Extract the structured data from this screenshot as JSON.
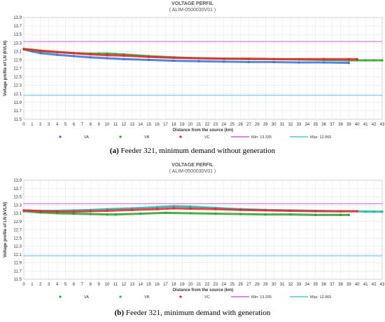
{
  "chart_data": [
    {
      "type": "scatter",
      "title": "VOLTAGE PERFIL",
      "subtitle": "( ALIM-0500030V01 )",
      "xlabel": "Distance from the source (km)",
      "ylabel": "Voltage profile of LN (kVLN)",
      "xlim": [
        0,
        43
      ],
      "ylim": [
        11.5,
        13.9
      ],
      "yticks": [
        "11.5",
        "11.7",
        "11.9",
        "12.1",
        "12.3",
        "12.5",
        "12.7",
        "12.9",
        "13.1",
        "13.3",
        "13.5",
        "13.7",
        "13.9"
      ],
      "xticks": [
        "0",
        "1",
        "2",
        "3",
        "4",
        "5",
        "6",
        "7",
        "8",
        "9",
        "10",
        "11",
        "12",
        "13",
        "14",
        "15",
        "16",
        "17",
        "18",
        "19",
        "20",
        "21",
        "22",
        "23",
        "24",
        "25",
        "26",
        "27",
        "28",
        "29",
        "30",
        "31",
        "32",
        "33",
        "34",
        "35",
        "36",
        "37",
        "38",
        "39",
        "40",
        "41",
        "42",
        "43"
      ],
      "grid": true,
      "legend_position": "bottom",
      "series": [
        {
          "name": "VA",
          "color": "#3a6fd8",
          "x": [
            0,
            1,
            2,
            4,
            6,
            8,
            10,
            12,
            15,
            18,
            21,
            24,
            27,
            30,
            33,
            36,
            39
          ],
          "y": [
            13.15,
            13.1,
            13.06,
            13.02,
            12.99,
            12.96,
            12.94,
            12.92,
            12.9,
            12.88,
            12.87,
            12.86,
            12.85,
            12.85,
            12.84,
            12.84,
            12.83
          ]
        },
        {
          "name": "VB",
          "color": "#2ca02c",
          "x": [
            0,
            1,
            2,
            4,
            6,
            8,
            9,
            10,
            11,
            12,
            15,
            18,
            21,
            24,
            27,
            30,
            33,
            36,
            39,
            40,
            41,
            42,
            43
          ],
          "y": [
            13.15,
            13.13,
            13.11,
            13.08,
            13.06,
            13.05,
            13.05,
            13.05,
            13.04,
            13.03,
            12.99,
            12.96,
            12.94,
            12.93,
            12.92,
            12.92,
            12.91,
            12.9,
            12.89,
            12.89,
            12.89,
            12.89,
            12.89
          ]
        },
        {
          "name": "VC",
          "color": "#e8262c",
          "x": [
            0,
            1,
            2,
            4,
            6,
            8,
            10,
            12,
            15,
            18,
            21,
            24,
            27,
            30,
            33,
            36,
            39,
            40
          ],
          "y": [
            13.16,
            13.14,
            13.12,
            13.09,
            13.06,
            13.03,
            13.01,
            13.0,
            12.97,
            12.95,
            12.94,
            12.93,
            12.93,
            12.92,
            12.92,
            12.92,
            12.92,
            12.92
          ]
        }
      ],
      "hlines": [
        {
          "name": "Mín: 13.335",
          "value": 13.335,
          "color": "#cc66cc"
        },
        {
          "name": "Máx: 12.065",
          "value": 12.065,
          "color": "#5bc0de"
        }
      ],
      "caption_label": "(a)",
      "caption_text": " Feeder 321, minimum demand without generation"
    },
    {
      "type": "scatter",
      "title": "VOLTAGE PERFIL",
      "subtitle": "( ALIM-0500030V01 )",
      "xlabel": "Distance from the source (km)",
      "ylabel": "Voltage profile of LN (kVLN)",
      "xlim": [
        0,
        43
      ],
      "ylim": [
        11.5,
        13.9
      ],
      "yticks": [
        "11.5",
        "11.7",
        "11.9",
        "12.1",
        "12.3",
        "12.5",
        "12.7",
        "12.9",
        "13.1",
        "13.3",
        "13.5",
        "13.7",
        "13.9"
      ],
      "xticks": [
        "0",
        "1",
        "2",
        "3",
        "4",
        "5",
        "6",
        "7",
        "8",
        "9",
        "10",
        "11",
        "12",
        "13",
        "14",
        "15",
        "16",
        "17",
        "18",
        "19",
        "20",
        "21",
        "22",
        "23",
        "24",
        "25",
        "26",
        "27",
        "28",
        "29",
        "30",
        "31",
        "32",
        "33",
        "34",
        "35",
        "36",
        "37",
        "38",
        "39",
        "40",
        "41",
        "42",
        "43"
      ],
      "grid": true,
      "legend_position": "bottom",
      "series": [
        {
          "name": "VA",
          "color": "#2ca02c",
          "x": [
            0,
            2,
            4,
            6,
            8,
            10,
            11,
            14,
            17,
            20,
            23,
            26,
            29,
            32,
            35,
            38,
            39
          ],
          "y": [
            13.15,
            13.12,
            13.1,
            13.09,
            13.08,
            13.07,
            13.07,
            13.09,
            13.11,
            13.1,
            13.09,
            13.08,
            13.07,
            13.07,
            13.06,
            13.06,
            13.06
          ]
        },
        {
          "name": "VB",
          "color": "#20b2aa",
          "x": [
            0,
            2,
            4,
            6,
            8,
            10,
            13,
            16,
            18,
            20,
            23,
            26,
            29,
            32,
            35,
            38,
            40,
            41,
            42,
            43
          ],
          "y": [
            13.17,
            13.16,
            13.16,
            13.17,
            13.18,
            13.2,
            13.22,
            13.25,
            13.27,
            13.26,
            13.23,
            13.2,
            13.18,
            13.17,
            13.16,
            13.15,
            13.15,
            13.14,
            13.14,
            13.14
          ]
        },
        {
          "name": "VC",
          "color": "#e8262c",
          "x": [
            0,
            2,
            4,
            6,
            8,
            10,
            13,
            16,
            18,
            20,
            23,
            26,
            29,
            32,
            35,
            38,
            40
          ],
          "y": [
            13.17,
            13.15,
            13.14,
            13.14,
            13.15,
            13.16,
            13.18,
            13.2,
            13.22,
            13.21,
            13.2,
            13.18,
            13.17,
            13.16,
            13.15,
            13.15,
            13.15
          ]
        }
      ],
      "hlines": [
        {
          "name": "Mín: 13.335",
          "value": 13.335,
          "color": "#cc66cc"
        },
        {
          "name": "Máx: 12.065",
          "value": 12.065,
          "color": "#5bc0de"
        }
      ],
      "caption_label": "(b)",
      "caption_text": " Feeder 321, minimum demand with generation"
    }
  ]
}
